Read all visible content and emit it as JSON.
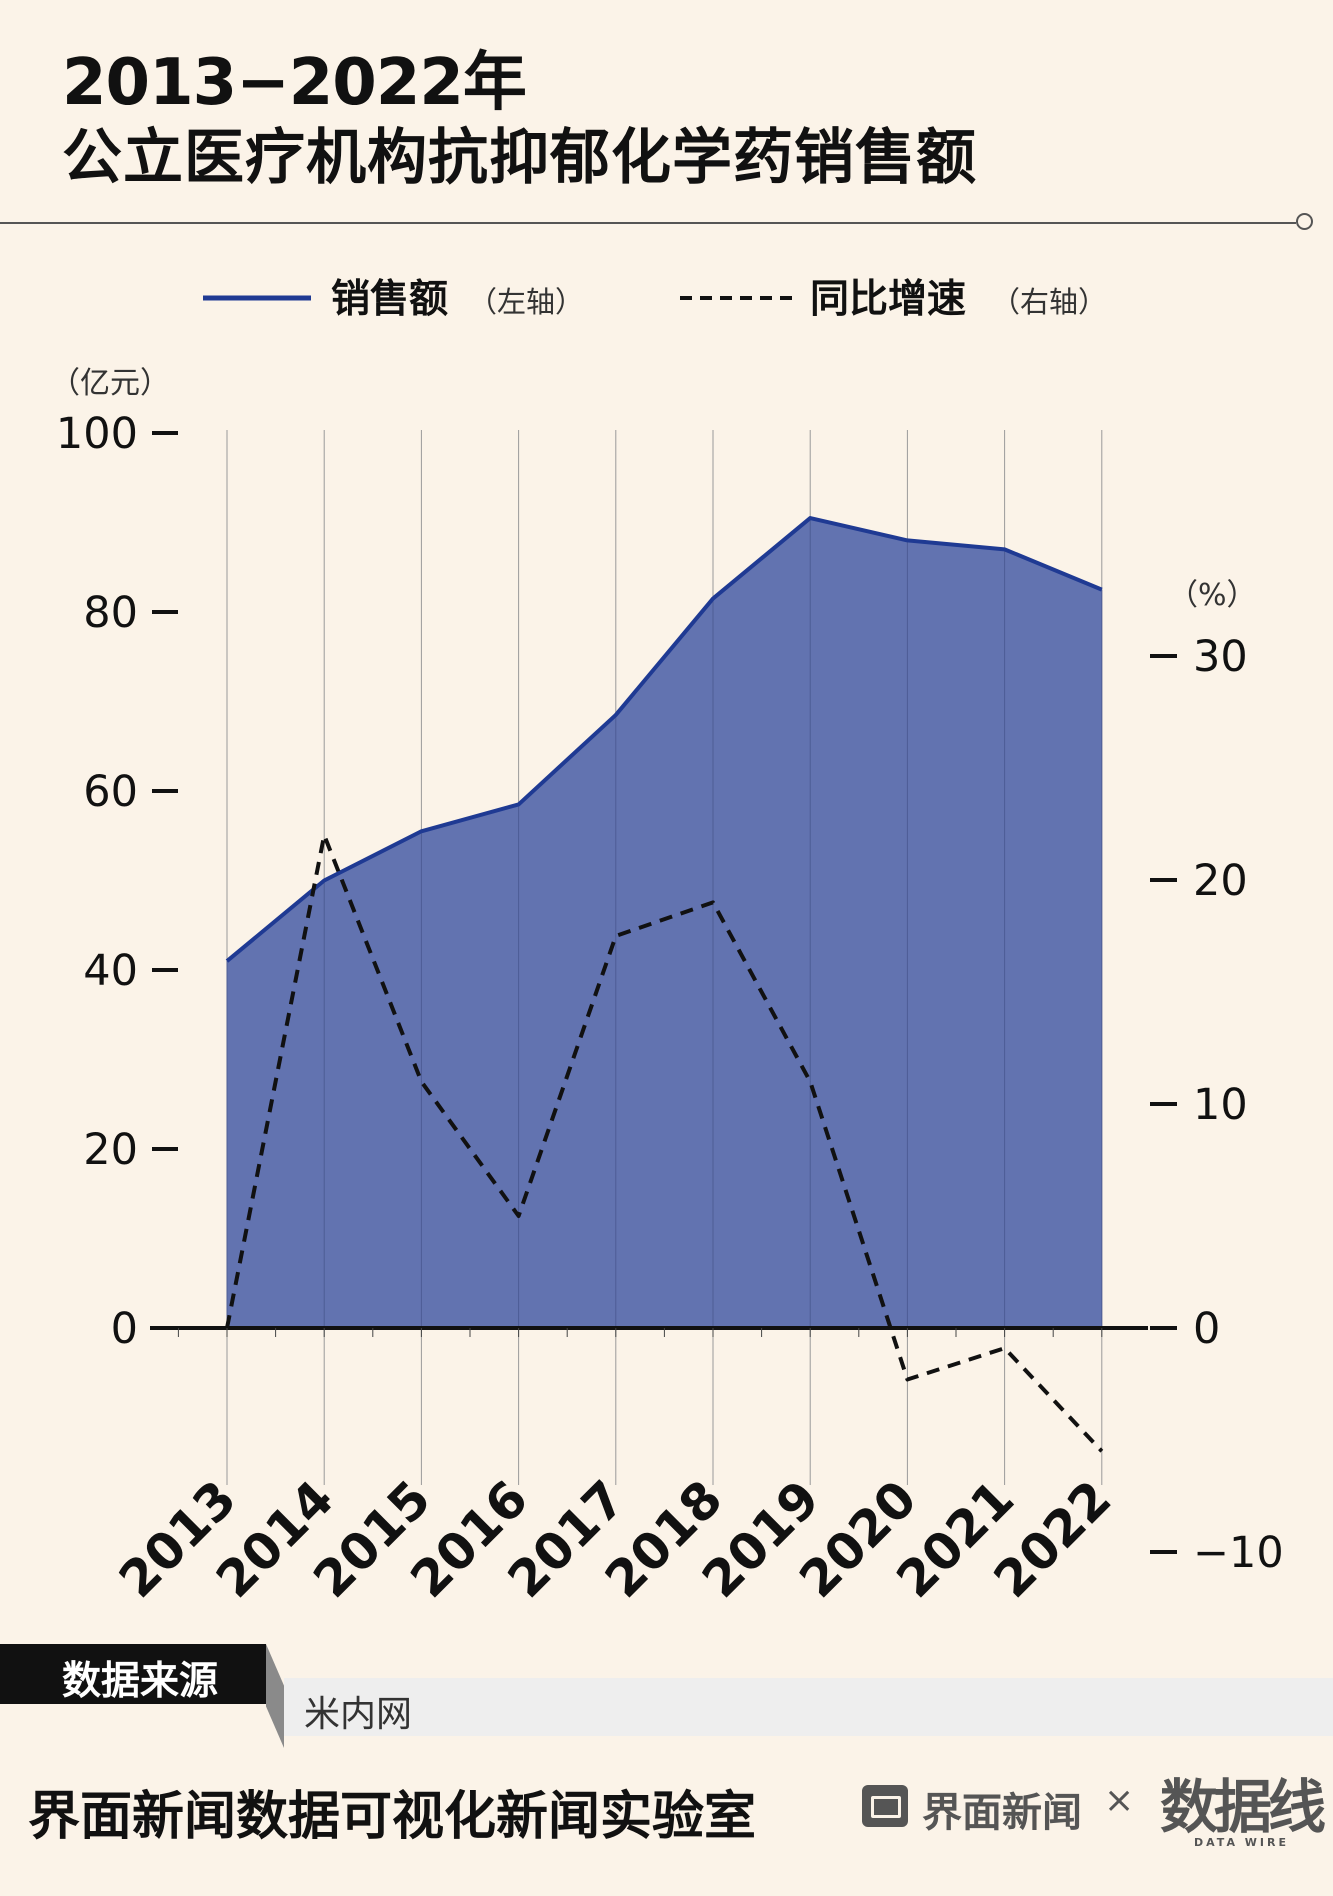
{
  "header": {
    "title_line1": "2013−2022年",
    "title_line2": "公立医疗机构抗抑郁化学药销售额"
  },
  "chart_data": {
    "type": "area",
    "title": "2013−2022年 公立医疗机构抗抑郁化学药销售额",
    "x": [
      "2013",
      "2014",
      "2015",
      "2016",
      "2017",
      "2018",
      "2019",
      "2020",
      "2021",
      "2022"
    ],
    "series": [
      {
        "name": "销售额",
        "axis": "left",
        "legend_suffix": "（左轴）",
        "kind": "area",
        "color": "#1f3a93",
        "fill": "#6273b0",
        "values": [
          41,
          50,
          55.5,
          58.5,
          68.5,
          81.5,
          90.5,
          88,
          87,
          82.5
        ]
      },
      {
        "name": "同比增速",
        "axis": "right",
        "legend_suffix": "（右轴）",
        "kind": "line",
        "style": "dashed",
        "color": "#111111",
        "values": [
          null,
          22,
          11,
          5,
          17.5,
          19,
          11,
          -2.3,
          -0.9,
          -5.5
        ]
      }
    ],
    "y_left": {
      "unit": "（亿元）",
      "ticks": [
        "0",
        "20",
        "40",
        "60",
        "80",
        "100"
      ],
      "range": [
        0,
        100
      ]
    },
    "y_right": {
      "unit": "（%）",
      "ticks": [
        "−10",
        "0",
        "10",
        "20",
        "30"
      ],
      "range": [
        -10,
        30
      ]
    },
    "grid": "vertical",
    "legend_position": "top"
  },
  "source": {
    "label": "数据来源",
    "value": "米内网"
  },
  "footer": {
    "credit": "界面新闻数据可视化新闻实验室",
    "logo1": "界面新闻",
    "times": "×",
    "logo2": "数据线",
    "logo2_sub": "DATA WIRE"
  }
}
